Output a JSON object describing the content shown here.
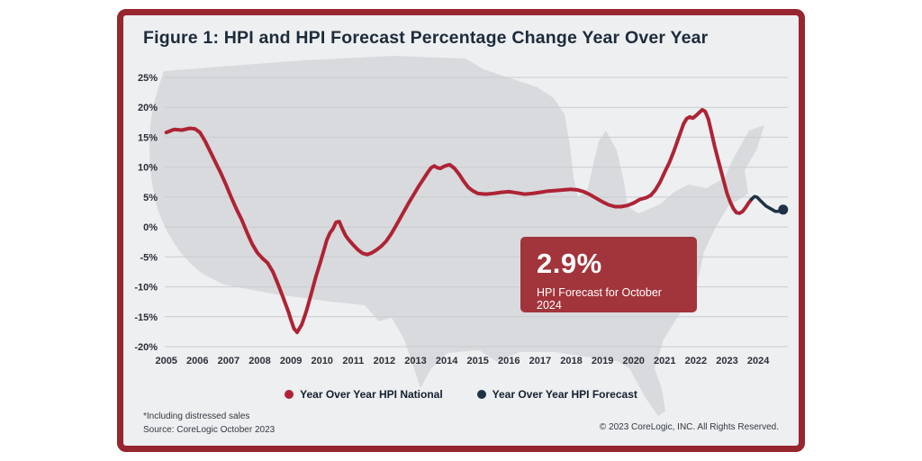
{
  "title": "Figure 1: HPI and HPI Forecast Percentage Change Year Over Year",
  "callout": {
    "value": "2.9%",
    "label": "HPI Forecast for October 2024"
  },
  "legend": [
    {
      "label": "Year Over Year HPI National",
      "color": "#ae2335"
    },
    {
      "label": "Year Over Year HPI Forecast",
      "color": "#1e3245"
    }
  ],
  "footnotes": {
    "line1": "*Including distressed sales",
    "line2": "Source: CoreLogic October 2023"
  },
  "copyright": "© 2023 CoreLogic, INC. All Rights Reserved.",
  "colors": {
    "frame": "#97262f",
    "background": "#edeff1",
    "map": "#d8dadd",
    "grid": "#c9ccd0",
    "callout": "#a2343b"
  },
  "chart_data": {
    "type": "line",
    "title": "Figure 1: HPI and HPI Forecast Percentage Change Year Over Year",
    "xlabel": "",
    "ylabel": "",
    "grid": "horizontal",
    "grid_color": "#c9ccd0",
    "legend_position": "bottom",
    "xlim": [
      2004.95,
      2024.95
    ],
    "ylim": [
      -20,
      25
    ],
    "x_ticks": [
      2005,
      2006,
      2007,
      2008,
      2009,
      2010,
      2011,
      2012,
      2013,
      2014,
      2015,
      2016,
      2017,
      2018,
      2019,
      2020,
      2021,
      2022,
      2023,
      2024
    ],
    "y_ticks": [
      25,
      20,
      15,
      10,
      5,
      0,
      -5,
      -10,
      -15,
      -20
    ],
    "y_tick_suffix": "%",
    "series": [
      {
        "name": "Year Over Year HPI National",
        "color": "#ae2335",
        "width": 4,
        "end_marker": false,
        "points": [
          [
            2005.0,
            15.8
          ],
          [
            2005.25,
            16.3
          ],
          [
            2005.5,
            16.2
          ],
          [
            2005.75,
            16.5
          ],
          [
            2005.92,
            16.4
          ],
          [
            2006.08,
            15.8
          ],
          [
            2006.25,
            14.3
          ],
          [
            2006.42,
            12.5
          ],
          [
            2006.58,
            10.8
          ],
          [
            2006.75,
            9.0
          ],
          [
            2006.92,
            7.0
          ],
          [
            2007.08,
            5.0
          ],
          [
            2007.25,
            3.0
          ],
          [
            2007.42,
            1.2
          ],
          [
            2007.58,
            -0.8
          ],
          [
            2007.75,
            -2.8
          ],
          [
            2007.92,
            -4.3
          ],
          [
            2008.08,
            -5.2
          ],
          [
            2008.25,
            -6.0
          ],
          [
            2008.42,
            -7.5
          ],
          [
            2008.58,
            -9.5
          ],
          [
            2008.75,
            -11.8
          ],
          [
            2008.92,
            -14.2
          ],
          [
            2009.0,
            -15.5
          ],
          [
            2009.1,
            -17.0
          ],
          [
            2009.2,
            -17.6
          ],
          [
            2009.35,
            -16.3
          ],
          [
            2009.5,
            -14.0
          ],
          [
            2009.65,
            -11.2
          ],
          [
            2009.8,
            -8.3
          ],
          [
            2009.95,
            -5.8
          ],
          [
            2010.05,
            -4.0
          ],
          [
            2010.15,
            -2.2
          ],
          [
            2010.25,
            -1.0
          ],
          [
            2010.35,
            -0.3
          ],
          [
            2010.45,
            0.8
          ],
          [
            2010.55,
            0.9
          ],
          [
            2010.65,
            -0.3
          ],
          [
            2010.75,
            -1.4
          ],
          [
            2010.85,
            -2.1
          ],
          [
            2011.0,
            -3.0
          ],
          [
            2011.15,
            -3.8
          ],
          [
            2011.3,
            -4.4
          ],
          [
            2011.45,
            -4.6
          ],
          [
            2011.6,
            -4.3
          ],
          [
            2011.75,
            -3.8
          ],
          [
            2011.9,
            -3.2
          ],
          [
            2012.05,
            -2.4
          ],
          [
            2012.2,
            -1.3
          ],
          [
            2012.35,
            0.0
          ],
          [
            2012.5,
            1.4
          ],
          [
            2012.65,
            2.8
          ],
          [
            2012.8,
            4.2
          ],
          [
            2012.95,
            5.5
          ],
          [
            2013.1,
            6.8
          ],
          [
            2013.25,
            8.0
          ],
          [
            2013.4,
            9.2
          ],
          [
            2013.5,
            9.9
          ],
          [
            2013.6,
            10.2
          ],
          [
            2013.7,
            9.9
          ],
          [
            2013.8,
            9.8
          ],
          [
            2013.9,
            10.1
          ],
          [
            2014.0,
            10.3
          ],
          [
            2014.1,
            10.4
          ],
          [
            2014.25,
            9.8
          ],
          [
            2014.4,
            8.8
          ],
          [
            2014.55,
            7.6
          ],
          [
            2014.7,
            6.6
          ],
          [
            2014.85,
            6.0
          ],
          [
            2015.0,
            5.6
          ],
          [
            2015.25,
            5.5
          ],
          [
            2015.5,
            5.6
          ],
          [
            2015.75,
            5.8
          ],
          [
            2016.0,
            5.9
          ],
          [
            2016.25,
            5.7
          ],
          [
            2016.5,
            5.5
          ],
          [
            2016.75,
            5.6
          ],
          [
            2017.0,
            5.8
          ],
          [
            2017.25,
            6.0
          ],
          [
            2017.5,
            6.1
          ],
          [
            2017.75,
            6.2
          ],
          [
            2018.0,
            6.3
          ],
          [
            2018.2,
            6.2
          ],
          [
            2018.4,
            5.9
          ],
          [
            2018.6,
            5.4
          ],
          [
            2018.8,
            4.8
          ],
          [
            2019.0,
            4.2
          ],
          [
            2019.2,
            3.7
          ],
          [
            2019.4,
            3.4
          ],
          [
            2019.6,
            3.4
          ],
          [
            2019.8,
            3.6
          ],
          [
            2020.0,
            4.0
          ],
          [
            2020.2,
            4.6
          ],
          [
            2020.4,
            4.9
          ],
          [
            2020.55,
            5.3
          ],
          [
            2020.7,
            6.2
          ],
          [
            2020.85,
            7.5
          ],
          [
            2021.0,
            9.2
          ],
          [
            2021.15,
            10.8
          ],
          [
            2021.3,
            12.8
          ],
          [
            2021.45,
            15.0
          ],
          [
            2021.6,
            17.2
          ],
          [
            2021.7,
            18.1
          ],
          [
            2021.8,
            18.4
          ],
          [
            2021.9,
            18.2
          ],
          [
            2022.0,
            18.6
          ],
          [
            2022.1,
            19.1
          ],
          [
            2022.2,
            19.6
          ],
          [
            2022.3,
            19.3
          ],
          [
            2022.4,
            18.0
          ],
          [
            2022.5,
            15.8
          ],
          [
            2022.6,
            13.5
          ],
          [
            2022.7,
            11.5
          ],
          [
            2022.8,
            9.5
          ],
          [
            2022.9,
            7.5
          ],
          [
            2023.0,
            5.6
          ],
          [
            2023.1,
            4.2
          ],
          [
            2023.2,
            3.1
          ],
          [
            2023.3,
            2.4
          ],
          [
            2023.4,
            2.3
          ],
          [
            2023.5,
            2.6
          ],
          [
            2023.6,
            3.3
          ],
          [
            2023.7,
            4.1
          ],
          [
            2023.78,
            4.6
          ]
        ]
      },
      {
        "name": "Year Over Year HPI Forecast",
        "color": "#1e3245",
        "width": 3.5,
        "end_marker": true,
        "points": [
          [
            2023.78,
            4.6
          ],
          [
            2023.88,
            5.1
          ],
          [
            2023.96,
            5.0
          ],
          [
            2024.05,
            4.5
          ],
          [
            2024.15,
            4.0
          ],
          [
            2024.25,
            3.5
          ],
          [
            2024.35,
            3.2
          ],
          [
            2024.45,
            2.9
          ],
          [
            2024.55,
            2.6
          ],
          [
            2024.65,
            2.6
          ],
          [
            2024.72,
            2.8
          ],
          [
            2024.8,
            2.9
          ]
        ]
      }
    ]
  }
}
